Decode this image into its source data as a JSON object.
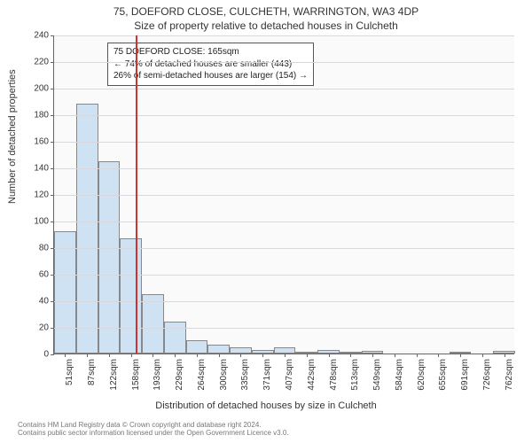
{
  "title_line1": "75, DOEFORD CLOSE, CULCHETH, WARRINGTON, WA3 4DP",
  "title_line2": "Size of property relative to detached houses in Culcheth",
  "yaxis_label": "Number of detached properties",
  "xaxis_label": "Distribution of detached houses by size in Culcheth",
  "footer_line1": "Contains HM Land Registry data © Crown copyright and database right 2024.",
  "footer_line2": "Contains public sector information licensed under the Open Government Licence v3.0.",
  "chart": {
    "type": "histogram",
    "background_color": "#fafafb",
    "grid_color": "#d8d8dc",
    "axis_color": "#666666",
    "bar_fill": "#cfe2f3",
    "bar_border": "#888888",
    "marker_color": "#cc3333",
    "ylim": [
      0,
      240
    ],
    "ytick_step": 20,
    "x_bin_start": 33,
    "x_bin_width": 35.5,
    "x_tick_labels": [
      "51sqm",
      "87sqm",
      "122sqm",
      "158sqm",
      "193sqm",
      "229sqm",
      "264sqm",
      "300sqm",
      "335sqm",
      "371sqm",
      "407sqm",
      "442sqm",
      "478sqm",
      "513sqm",
      "549sqm",
      "584sqm",
      "620sqm",
      "655sqm",
      "691sqm",
      "726sqm",
      "762sqm"
    ],
    "values": [
      92,
      188,
      145,
      87,
      45,
      24,
      10,
      7,
      5,
      3,
      5,
      1,
      3,
      1,
      2,
      0,
      0,
      0,
      1,
      0,
      2
    ],
    "marker_value": 165,
    "annotation": {
      "line1": "75 DOEFORD CLOSE: 165sqm",
      "line2": "← 74% of detached houses are smaller (443)",
      "line3": "26% of semi-detached houses are larger (154) →"
    }
  }
}
